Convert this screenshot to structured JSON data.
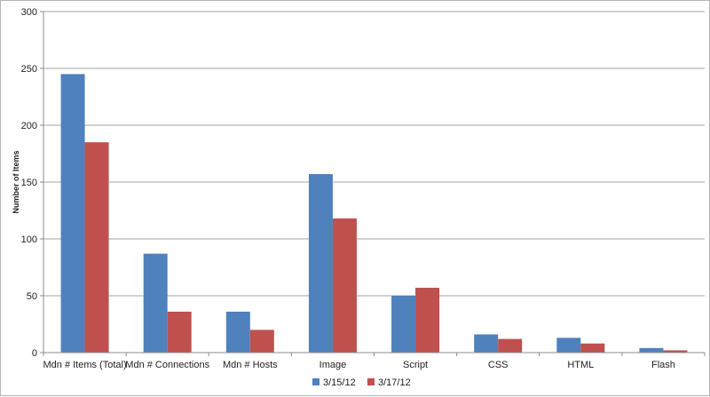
{
  "chart_data": {
    "type": "bar",
    "title": "",
    "xlabel": "",
    "ylabel": "Number of Items",
    "ylim": [
      0,
      300
    ],
    "yticks": [
      0,
      50,
      100,
      150,
      200,
      250,
      300
    ],
    "grid": true,
    "legend_position": "bottom",
    "categories": [
      "Mdn # Items (Total)",
      "Mdn # Connections",
      "Mdn # Hosts",
      "Image",
      "Script",
      "CSS",
      "HTML",
      "Flash"
    ],
    "series": [
      {
        "name": "3/15/12",
        "color": "#4f81bd",
        "values": [
          245,
          87,
          36,
          157,
          50,
          16,
          13,
          4
        ]
      },
      {
        "name": "3/17/12",
        "color": "#c0504d",
        "values": [
          185,
          36,
          20,
          118,
          57,
          12,
          8,
          2
        ]
      }
    ]
  }
}
